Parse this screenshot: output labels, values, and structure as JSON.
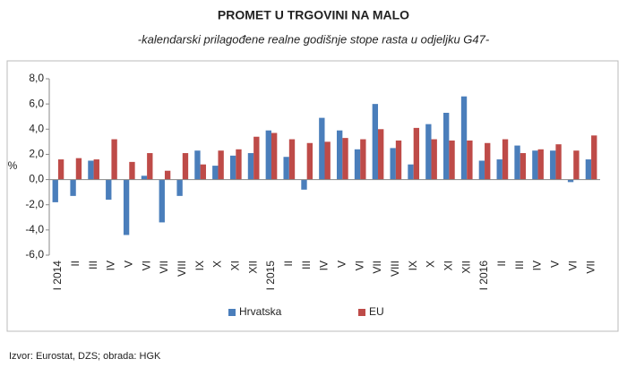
{
  "chart_data": {
    "type": "bar",
    "title": "PROMET U TRGOVINI NA MALO",
    "subtitle": "-kalendarski prilagođene realne godišnje stope rasta u odjeljku G47-",
    "y_label": "%",
    "source": "Izvor: Eurostat, DZS; obrada: HGK",
    "categories": [
      "I 2014",
      "II",
      "III",
      "IV",
      "V",
      "VI",
      "VII",
      "VIII",
      "IX",
      "X",
      "XI",
      "XII",
      "I 2015",
      "II",
      "III",
      "IV",
      "V",
      "VI",
      "VII",
      "VIII",
      "IX",
      "X",
      "XI",
      "XII",
      "I 2016",
      "II",
      "III",
      "IV",
      "V",
      "VI",
      "VII"
    ],
    "series": [
      {
        "name": "Hrvatska",
        "color": "#4a7ebb",
        "values": [
          -1.8,
          -1.3,
          1.5,
          -1.6,
          -4.4,
          0.3,
          -3.4,
          -1.3,
          2.3,
          1.1,
          1.9,
          2.1,
          3.9,
          1.8,
          -0.8,
          4.9,
          3.9,
          2.4,
          6.0,
          2.5,
          1.2,
          4.4,
          5.3,
          6.6,
          1.5,
          1.6,
          2.7,
          2.3,
          2.3,
          -0.2,
          1.6
        ]
      },
      {
        "name": "EU",
        "color": "#be4b48",
        "values": [
          1.6,
          1.7,
          1.6,
          3.2,
          1.4,
          2.1,
          0.7,
          2.1,
          1.2,
          2.3,
          2.4,
          3.4,
          3.7,
          3.2,
          2.9,
          3.0,
          3.3,
          3.2,
          4.0,
          3.1,
          4.1,
          3.2,
          3.1,
          3.1,
          2.9,
          3.2,
          2.1,
          2.4,
          2.8,
          2.3,
          3.5
        ]
      }
    ],
    "ylim": [
      -6,
      8
    ],
    "yticks": [
      {
        "value": -6,
        "label": "-6,0"
      },
      {
        "value": -4,
        "label": "-4,0"
      },
      {
        "value": -2,
        "label": "-2,0"
      },
      {
        "value": 0,
        "label": "0,0"
      },
      {
        "value": 2,
        "label": "2,0"
      },
      {
        "value": 4,
        "label": "4,0"
      },
      {
        "value": 6,
        "label": "6,0"
      },
      {
        "value": 8,
        "label": "8,0"
      }
    ],
    "grid": false
  }
}
